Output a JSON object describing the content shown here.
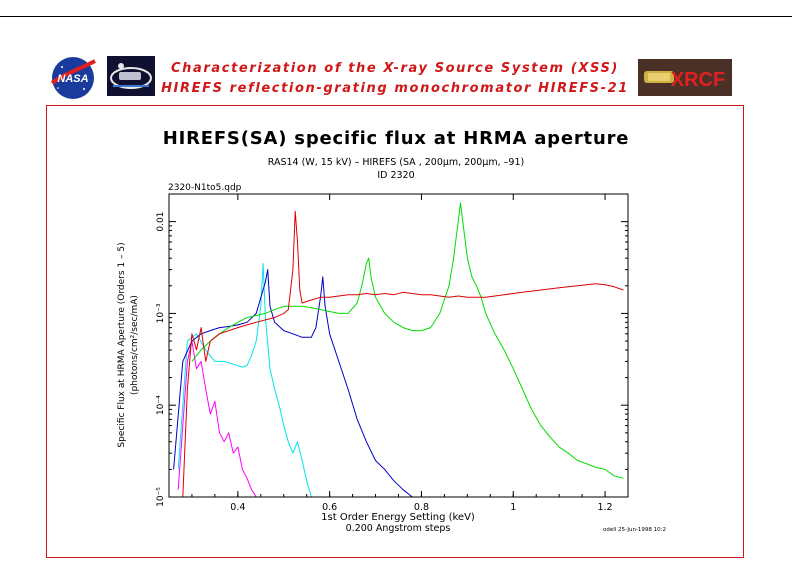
{
  "header": {
    "line1": "Characterization of the X-ray Source System (XSS)",
    "line2": "HIREFS reflection-grating monochromator  HIREFS-21",
    "nasa_logo": "NASA",
    "xrcf_logo": "XRCF"
  },
  "chart_data": {
    "type": "line",
    "title": "HIREFS(SA) specific flux at HRMA aperture",
    "subtitle1": "RAS14 (W, 15 kV) – HIREFS (SA , 200μm, 200μm, –91)",
    "subtitle2": "ID 2320",
    "file_label": "2320-N1to5.qdp",
    "xlabel": "1st Order Energy Setting (keV)",
    "xlabel2": "0.200 Angstrom steps",
    "ylabel": "Specific Flux at HRMA Aperture (Orders 1 – 5)",
    "ylabel2": "(photons/cm²/sec/mA)",
    "timestamp": "odell 25-Jun-1998 10:2",
    "xlim": [
      0.25,
      1.25
    ],
    "ylim": [
      1e-05,
      0.02
    ],
    "yscale": "log",
    "grid": false,
    "xticks": [
      0.4,
      0.6,
      0.8,
      1,
      1.2
    ],
    "xtick_labels": [
      "0.4",
      "0.6",
      "0.8",
      "1",
      "1.2"
    ],
    "yticks": [
      1e-05,
      0.0001,
      0.001,
      0.01
    ],
    "ytick_labels": [
      "10⁻⁵",
      "10⁻⁴",
      "10⁻³",
      "0.01"
    ],
    "series": [
      {
        "color": "#ff00ff",
        "x": [
          0.27,
          0.28,
          0.29,
          0.3,
          0.31,
          0.32,
          0.33,
          0.34,
          0.35,
          0.36,
          0.37,
          0.38,
          0.39,
          0.4,
          0.41,
          0.42,
          0.43,
          0.44
        ],
        "y": [
          1.2e-05,
          6e-05,
          0.0003,
          0.0005,
          0.00025,
          0.0003,
          0.00015,
          8e-05,
          0.00011,
          5e-05,
          4e-05,
          5e-05,
          3e-05,
          3.5e-05,
          2e-05,
          1.6e-05,
          1.2e-05,
          1e-05
        ]
      },
      {
        "color": "#00e5ee",
        "x": [
          0.27,
          0.29,
          0.31,
          0.33,
          0.35,
          0.37,
          0.39,
          0.41,
          0.42,
          0.43,
          0.44,
          0.45,
          0.455,
          0.46,
          0.47,
          0.48,
          0.49,
          0.5,
          0.51,
          0.52,
          0.53,
          0.54,
          0.55,
          0.56
        ],
        "y": [
          2e-05,
          0.0005,
          0.0006,
          0.0004,
          0.0003,
          0.0003,
          0.00028,
          0.00026,
          0.00027,
          0.00035,
          0.0005,
          0.0012,
          0.0035,
          0.0009,
          0.00025,
          0.00015,
          0.0001,
          6e-05,
          4e-05,
          3e-05,
          4e-05,
          2.5e-05,
          1.5e-05,
          1e-05
        ]
      },
      {
        "color": "#0000c8",
        "x": [
          0.26,
          0.28,
          0.3,
          0.32,
          0.34,
          0.36,
          0.38,
          0.4,
          0.42,
          0.44,
          0.46,
          0.465,
          0.47,
          0.48,
          0.5,
          0.52,
          0.54,
          0.56,
          0.57,
          0.58,
          0.585,
          0.59,
          0.6,
          0.62,
          0.64,
          0.66,
          0.68,
          0.7,
          0.72,
          0.74,
          0.76,
          0.78,
          0.8
        ],
        "y": [
          2e-05,
          0.0003,
          0.0005,
          0.0006,
          0.00065,
          0.0007,
          0.00072,
          0.00075,
          0.0008,
          0.001,
          0.0022,
          0.003,
          0.0012,
          0.0008,
          0.00065,
          0.0006,
          0.00055,
          0.00055,
          0.0007,
          0.0015,
          0.0025,
          0.0012,
          0.0006,
          0.0003,
          0.00015,
          7e-05,
          4e-05,
          2.5e-05,
          2e-05,
          1.5e-05,
          1.2e-05,
          1e-05,
          1e-05
        ]
      },
      {
        "color": "#00dd00",
        "x": [
          0.3,
          0.32,
          0.34,
          0.36,
          0.38,
          0.4,
          0.42,
          0.44,
          0.46,
          0.48,
          0.5,
          0.52,
          0.54,
          0.56,
          0.58,
          0.6,
          0.62,
          0.64,
          0.66,
          0.67,
          0.68,
          0.685,
          0.69,
          0.7,
          0.72,
          0.74,
          0.76,
          0.78,
          0.8,
          0.82,
          0.84,
          0.86,
          0.87,
          0.88,
          0.885,
          0.89,
          0.9,
          0.91,
          0.92,
          0.93,
          0.94,
          0.96,
          0.98,
          1.0,
          1.02,
          1.04,
          1.06,
          1.08,
          1.1,
          1.12,
          1.14,
          1.16,
          1.18,
          1.2,
          1.22,
          1.24
        ],
        "y": [
          0.0003,
          0.0004,
          0.0005,
          0.0006,
          0.0007,
          0.0008,
          0.0009,
          0.00095,
          0.001,
          0.0011,
          0.0012,
          0.0012,
          0.0012,
          0.00115,
          0.0011,
          0.00105,
          0.001,
          0.001,
          0.0013,
          0.002,
          0.0035,
          0.004,
          0.0025,
          0.0015,
          0.001,
          0.0008,
          0.0007,
          0.00065,
          0.00065,
          0.0007,
          0.001,
          0.002,
          0.004,
          0.01,
          0.016,
          0.01,
          0.004,
          0.0025,
          0.002,
          0.0015,
          0.001,
          0.0006,
          0.0004,
          0.00025,
          0.00015,
          9e-05,
          6e-05,
          4.5e-05,
          3.5e-05,
          3e-05,
          2.5e-05,
          2.3e-05,
          2.1e-05,
          2e-05,
          1.7e-05,
          1.6e-05
        ]
      },
      {
        "color": "#dd0000",
        "x": [
          0.28,
          0.29,
          0.3,
          0.31,
          0.32,
          0.33,
          0.34,
          0.36,
          0.38,
          0.4,
          0.42,
          0.44,
          0.46,
          0.48,
          0.5,
          0.51,
          0.52,
          0.525,
          0.53,
          0.535,
          0.54,
          0.56,
          0.58,
          0.6,
          0.62,
          0.64,
          0.66,
          0.68,
          0.7,
          0.72,
          0.74,
          0.76,
          0.78,
          0.8,
          0.82,
          0.84,
          0.86,
          0.88,
          0.9,
          0.92,
          0.94,
          0.96,
          0.98,
          1.0,
          1.02,
          1.04,
          1.06,
          1.08,
          1.1,
          1.12,
          1.14,
          1.16,
          1.18,
          1.2,
          1.22,
          1.24
        ],
        "y": [
          1e-05,
          0.00015,
          0.0006,
          0.0004,
          0.0007,
          0.0003,
          0.0005,
          0.0006,
          0.00065,
          0.0007,
          0.00075,
          0.0008,
          0.00085,
          0.0009,
          0.001,
          0.0011,
          0.003,
          0.013,
          0.006,
          0.0018,
          0.0013,
          0.0014,
          0.0015,
          0.0015,
          0.00155,
          0.0016,
          0.0016,
          0.00165,
          0.0016,
          0.00165,
          0.0016,
          0.0017,
          0.00165,
          0.0016,
          0.0016,
          0.00155,
          0.0015,
          0.00155,
          0.0015,
          0.0015,
          0.0015,
          0.00155,
          0.0016,
          0.00165,
          0.0017,
          0.00175,
          0.0018,
          0.00185,
          0.0019,
          0.00195,
          0.002,
          0.00205,
          0.0021,
          0.00205,
          0.00195,
          0.0018
        ]
      }
    ]
  }
}
